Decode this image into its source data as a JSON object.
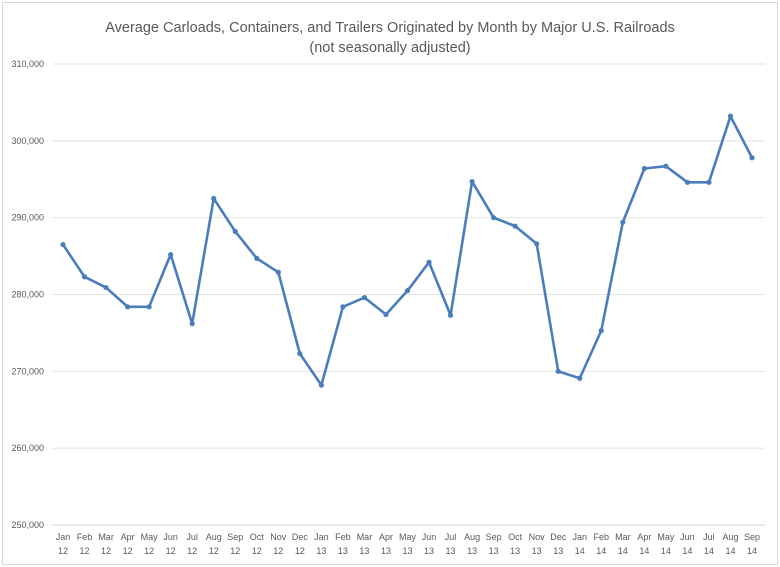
{
  "chart_data": {
    "type": "line",
    "title": "Average Carloads, Containers, and Trailers Originated by Month by Major U.S. Railroads",
    "subtitle": "(not seasonally adjusted)",
    "xlabel": "",
    "ylabel": "",
    "ylim": [
      250000,
      310000
    ],
    "yticks": [
      "250,000",
      "260,000",
      "270,000",
      "280,000",
      "290,000",
      "300,000",
      "310,000"
    ],
    "grid": true,
    "legend": "none",
    "color": "#4a7ebb",
    "categories": [
      [
        "Jan",
        "12"
      ],
      [
        "Feb",
        "12"
      ],
      [
        "Mar",
        "12"
      ],
      [
        "Apr",
        "12"
      ],
      [
        "May",
        "12"
      ],
      [
        "Jun",
        "12"
      ],
      [
        "Jul",
        "12"
      ],
      [
        "Aug",
        "12"
      ],
      [
        "Sep",
        "12"
      ],
      [
        "Oct",
        "12"
      ],
      [
        "Nov",
        "12"
      ],
      [
        "Dec",
        "12"
      ],
      [
        "Jan",
        "13"
      ],
      [
        "Feb",
        "13"
      ],
      [
        "Mar",
        "13"
      ],
      [
        "Apr",
        "13"
      ],
      [
        "May",
        "13"
      ],
      [
        "Jun",
        "13"
      ],
      [
        "Jul",
        "13"
      ],
      [
        "Aug",
        "13"
      ],
      [
        "Sep",
        "13"
      ],
      [
        "Oct",
        "13"
      ],
      [
        "Nov",
        "13"
      ],
      [
        "Dec",
        "13"
      ],
      [
        "Jan",
        "14"
      ],
      [
        "Feb",
        "14"
      ],
      [
        "Mar",
        "14"
      ],
      [
        "Apr",
        "14"
      ],
      [
        "May",
        "14"
      ],
      [
        "Jun",
        "14"
      ],
      [
        "Jul",
        "14"
      ],
      [
        "Aug",
        "14"
      ],
      [
        "Sep",
        "14"
      ]
    ],
    "values": [
      286500,
      282300,
      280900,
      278400,
      278400,
      285200,
      276200,
      292500,
      288200,
      284700,
      282900,
      272300,
      268200,
      278400,
      279600,
      277400,
      280500,
      284200,
      277300,
      294700,
      290000,
      288900,
      286600,
      270000,
      269100,
      275300,
      289400,
      296400,
      296700,
      294600,
      294600,
      303200,
      297800
    ]
  }
}
